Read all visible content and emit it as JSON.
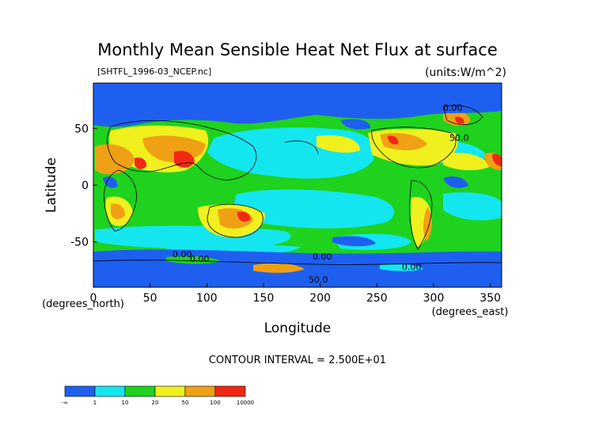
{
  "chart_data": {
    "type": "heatmap",
    "title": "Monthly Mean Sensible Heat Net Flux at surface",
    "subtitle_left": "[SHTFL_1996-03_NCEP.nc]",
    "subtitle_right": "(units:W/m^2)",
    "xlabel": "Longitude",
    "ylabel": "Latitude",
    "x_unit": "(degrees_east)",
    "y_unit": "(degrees_north)",
    "xlim": [
      0,
      360
    ],
    "ylim": [
      -90,
      90
    ],
    "x_ticks": [
      0,
      50,
      100,
      150,
      200,
      250,
      300,
      350
    ],
    "y_ticks": [
      50,
      0,
      -50
    ],
    "grid": false,
    "contour_interval_label": "CONTOUR INTERVAL = 2.500E+01",
    "contour_labels": [
      "0.00",
      "0.00",
      "0.00",
      "0.00",
      "0.00",
      "50.0",
      "50.0"
    ],
    "legend": {
      "placement": "bottom-left",
      "labels": [
        "-∞",
        "1",
        "10",
        "20",
        "50",
        "100",
        "10000"
      ],
      "colors": [
        "#1f5ff0",
        "#14e6f0",
        "#1ed21e",
        "#f0f01e",
        "#f0a014",
        "#f02814"
      ]
    },
    "colors": {
      "ocean_background": "#1ed21e",
      "level_neg": "#1f5ff0",
      "level_1_10": "#14e6f0",
      "level_10_20": "#1ed21e",
      "level_20_50": "#f0f01e",
      "level_50_100": "#f0a014",
      "level_100_plus": "#f02814"
    }
  }
}
